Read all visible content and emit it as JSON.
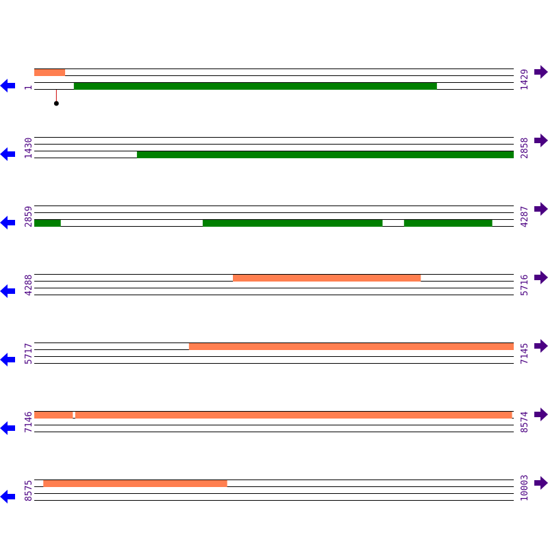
{
  "colors": {
    "track_a": "#ff7f50",
    "track_b": "#008000",
    "left_arrow": "#0000ff",
    "right_arrow": "#4b0082",
    "label": "#4b0082",
    "marker_stem": "#cc0000",
    "marker_head": "#000000"
  },
  "bases_per_row": 1429,
  "rows": [
    {
      "start": "1",
      "end": "1429"
    },
    {
      "start": "1430",
      "end": "2858"
    },
    {
      "start": "2859",
      "end": "4287"
    },
    {
      "start": "4288",
      "end": "5716"
    },
    {
      "start": "5717",
      "end": "7145"
    },
    {
      "start": "7146",
      "end": "8574"
    },
    {
      "start": "8575",
      "end": "10003"
    }
  ],
  "features": [
    {
      "track": "a",
      "start": 1,
      "end": 92
    },
    {
      "track": "b",
      "start": 119,
      "end": 1200
    },
    {
      "track": "b",
      "start": 1736,
      "end": 2858
    },
    {
      "track": "b",
      "start": 2859,
      "end": 2937
    },
    {
      "track": "b",
      "start": 3361,
      "end": 3896
    },
    {
      "track": "b",
      "start": 3961,
      "end": 4223
    },
    {
      "track": "a",
      "start": 4880,
      "end": 5439
    },
    {
      "track": "a",
      "start": 6178,
      "end": 7145
    },
    {
      "track": "a",
      "start": 7146,
      "end": 7260
    },
    {
      "track": "a",
      "start": 7268,
      "end": 8569
    },
    {
      "track": "a",
      "start": 8602,
      "end": 9149
    }
  ],
  "markers": [
    {
      "position": 67
    }
  ],
  "icons": {
    "left": "arrow-left-icon",
    "right": "arrow-right-icon"
  }
}
